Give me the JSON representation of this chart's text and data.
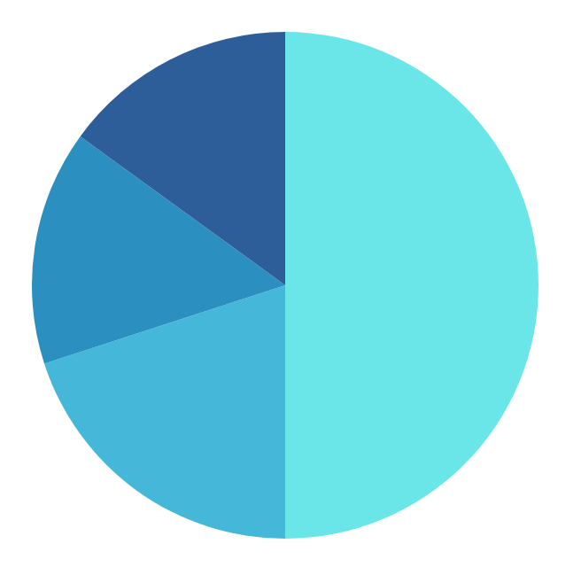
{
  "chart_data": {
    "type": "pie",
    "categories": [
      null,
      null,
      null,
      null
    ],
    "values": [
      50,
      20,
      15,
      15
    ],
    "colors": [
      "#6ae6e8",
      "#45b8d9",
      "#2b8fbf",
      "#2d5e9a"
    ]
  }
}
